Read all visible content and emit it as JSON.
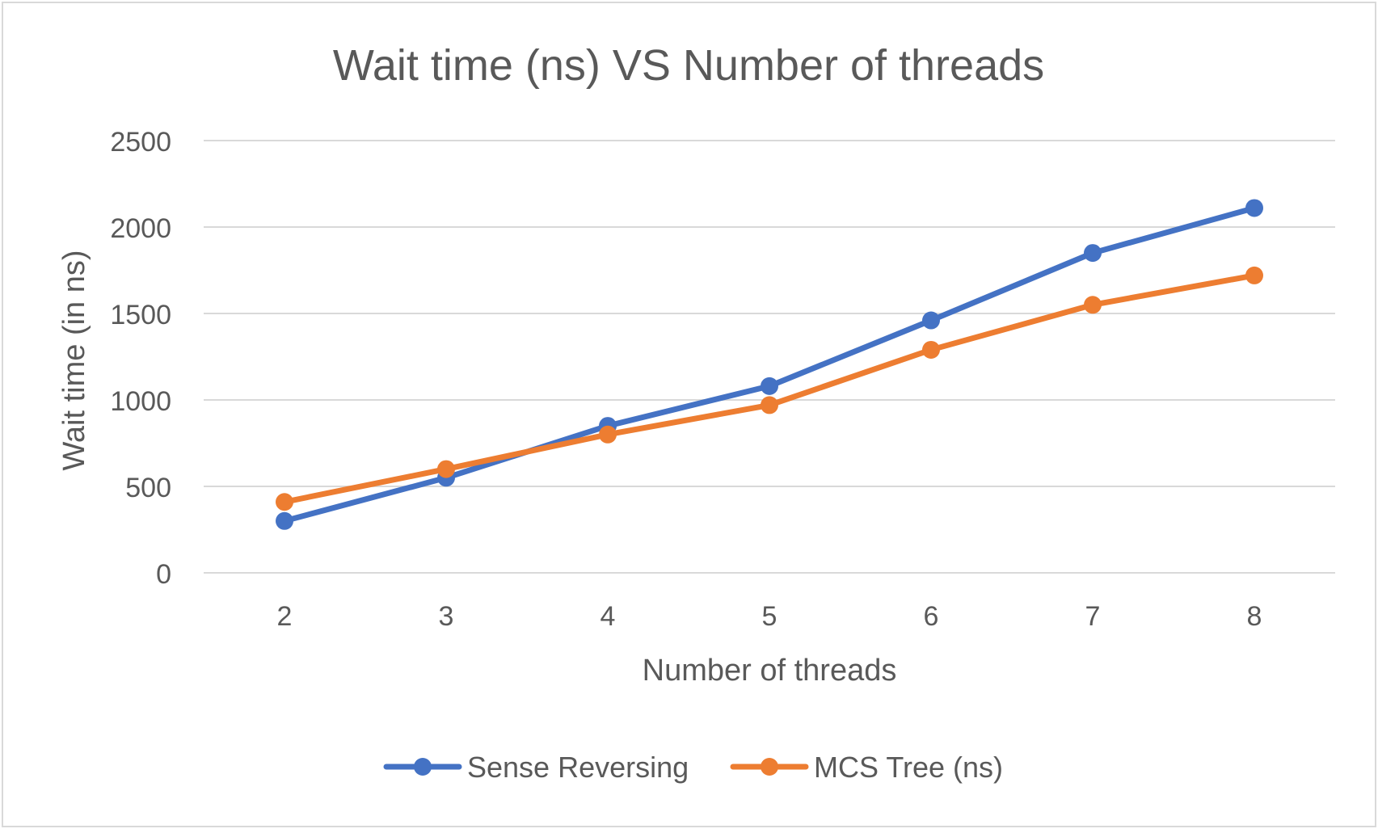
{
  "chart_data": {
    "type": "line",
    "title": "Wait time (ns) VS Number of threads",
    "xlabel": "Number of threads",
    "ylabel": "Wait time (in ns)",
    "categories": [
      "2",
      "3",
      "4",
      "5",
      "6",
      "7",
      "8"
    ],
    "ylim": [
      0,
      2500
    ],
    "yticks": [
      "0",
      "500",
      "1000",
      "1500",
      "2000",
      "2500"
    ],
    "grid": true,
    "legend_position": "bottom",
    "series": [
      {
        "name": "Sense Reversing",
        "color": "#4472C4",
        "values": [
          300,
          550,
          850,
          1080,
          1460,
          1850,
          2110
        ]
      },
      {
        "name": "MCS Tree (ns)",
        "color": "#ED7D31",
        "values": [
          410,
          600,
          800,
          970,
          1290,
          1550,
          1720
        ]
      }
    ]
  }
}
